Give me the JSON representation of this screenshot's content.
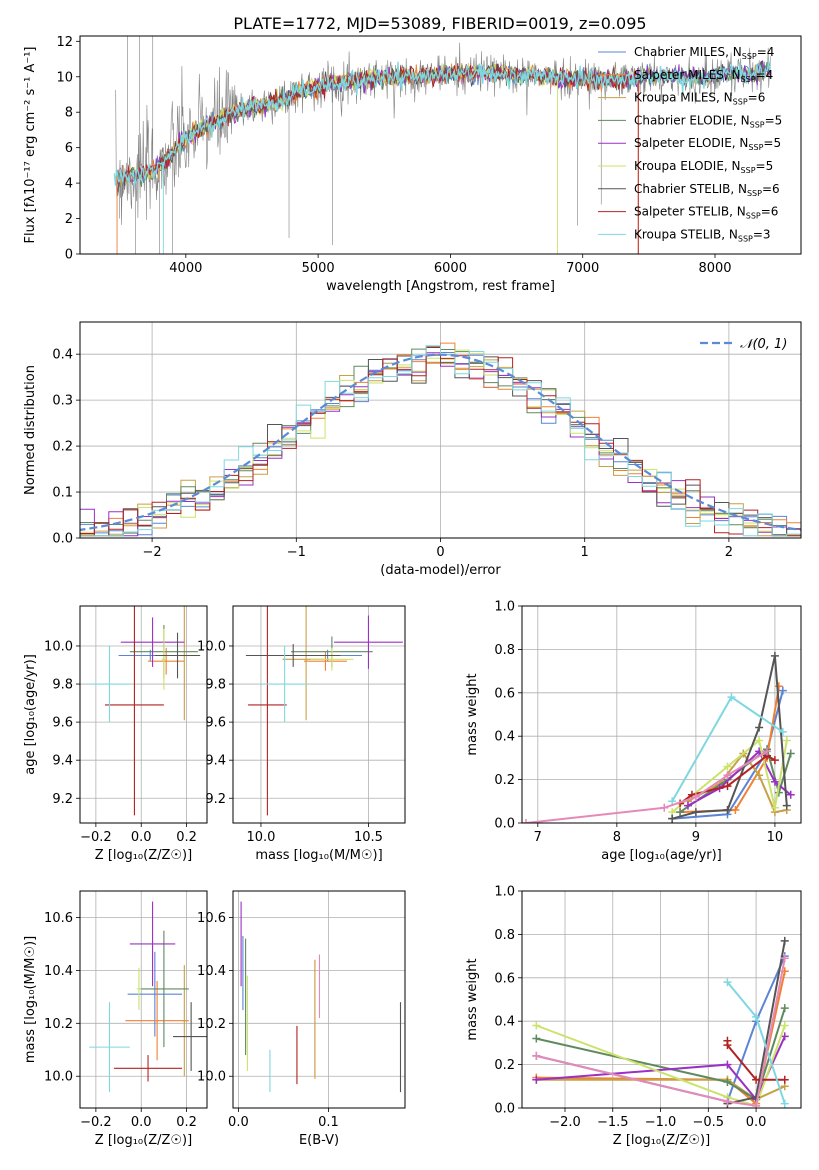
{
  "colors": {
    "ink": "#000000",
    "grid": "#b0b0b0",
    "models": [
      "#5b83d6",
      "#f28032",
      "#c8a046",
      "#5f8a5f",
      "#9b30c4",
      "#cbe36a",
      "#555555",
      "#b22222",
      "#7fd8e0"
    ],
    "extra": [
      "#e58ab8"
    ],
    "normal_curve": "#5b8ad6"
  },
  "chart_data": [
    {
      "id": "spectrum",
      "type": "line",
      "title": "PLATE=1772, MJD=53089, FIBERID=0019, z=0.095",
      "xlabel": "wavelength [Angstrom, rest frame]",
      "ylabel": "Flux [fλ10⁻¹⁷ erg cm⁻² s⁻¹ A⁻¹]",
      "xlim": [
        3200,
        8650
      ],
      "ylim": [
        0,
        12.3
      ],
      "xticks": [
        4000,
        5000,
        6000,
        7000,
        8000
      ],
      "yticks": [
        0,
        2,
        4,
        6,
        8,
        10,
        12
      ],
      "grid": false,
      "legend_position": "right",
      "legend": [
        {
          "text": "Chabrier MILES, N",
          "sub": "SSP",
          "tail": "=4"
        },
        {
          "text": "Salpeter MILES, N",
          "sub": "SSP",
          "tail": "=4"
        },
        {
          "text": "Kroupa MILES, N",
          "sub": "SSP",
          "tail": "=6"
        },
        {
          "text": "Chabrier ELODIE, N",
          "sub": "SSP",
          "tail": "=5"
        },
        {
          "text": "Salpeter ELODIE, N",
          "sub": "SSP",
          "tail": "=5"
        },
        {
          "text": "Kroupa ELODIE, N",
          "sub": "SSP",
          "tail": "=5"
        },
        {
          "text": "Chabrier STELIB, N",
          "sub": "SSP",
          "tail": "=6"
        },
        {
          "text": "Salpeter STELIB, N",
          "sub": "SSP",
          "tail": "=6"
        },
        {
          "text": "Kroupa STELIB, N",
          "sub": "SSP",
          "tail": "=3"
        }
      ],
      "continuum": {
        "x": [
          3480,
          3550,
          3650,
          3750,
          3850,
          3950,
          4050,
          4150,
          4300,
          4450,
          4600,
          4750,
          4900,
          5100,
          5300,
          5500,
          5700,
          5900,
          6100,
          6300,
          6500,
          6700,
          6900,
          7100,
          7300,
          7500,
          7700,
          7900,
          8100,
          8300,
          8400
        ],
        "y": [
          4.2,
          4.4,
          4.5,
          4.7,
          5.3,
          6.2,
          6.7,
          7.2,
          7.7,
          8.2,
          8.4,
          8.8,
          9.3,
          9.6,
          9.8,
          10.0,
          10.0,
          10.1,
          10.2,
          10.2,
          10.1,
          10.0,
          9.9,
          9.9,
          9.8,
          10.0,
          10.0,
          9.9,
          10.3,
          10.1,
          10.5
        ]
      },
      "model_start_x": [
        3480,
        3470,
        3480,
        3480,
        3480,
        3480,
        3480,
        3480,
        3460
      ],
      "model_end_x": [
        8420,
        7420,
        8420,
        8420,
        8420,
        6810,
        8420,
        7420,
        8420
      ]
    },
    {
      "id": "residuals",
      "type": "line",
      "xlabel": "(data-model)/error",
      "ylabel": "Normed distribution",
      "xlim": [
        -2.5,
        2.5
      ],
      "ylim": [
        0,
        0.47
      ],
      "xticks": [
        -2,
        -1,
        0,
        1,
        2
      ],
      "yticks": [
        0.0,
        0.1,
        0.2,
        0.3,
        0.4
      ],
      "grid": true,
      "legend": {
        "text": "𝒩(0, 1)"
      },
      "normal": {
        "mean": 0,
        "sigma": 1
      },
      "bin_width": 0.1
    },
    {
      "id": "age-vs-z",
      "type": "scatter",
      "xlabel": "Z [log₁₀(Z/Z☉)]",
      "ylabel": "age  [log₁₀(age/yr)]",
      "xlim": [
        -0.27,
        0.29
      ],
      "ylim": [
        9.07,
        10.21
      ],
      "xticks": [
        -0.2,
        0.0,
        0.2
      ],
      "yticks": [
        9.2,
        9.4,
        9.6,
        9.8,
        10.0
      ],
      "grid": true,
      "points": [
        {
          "x": 0.04,
          "y": 9.95,
          "xerr": 0.14,
          "yerr": 0.03,
          "c": 0
        },
        {
          "x": 0.11,
          "y": 9.92,
          "xerr": 0.08,
          "yerr": 0.07,
          "c": 1
        },
        {
          "x": 0.19,
          "y": 9.95,
          "xerr": 0.01,
          "yerr": 0.34,
          "c": 2
        },
        {
          "x": 0.1,
          "y": 9.97,
          "xerr": 0.15,
          "yerr": 0.14,
          "c": 3
        },
        {
          "x": 0.05,
          "y": 10.02,
          "xerr": 0.14,
          "yerr": 0.13,
          "c": 4
        },
        {
          "x": 0.1,
          "y": 9.93,
          "xerr": 0.01,
          "yerr": 0.16,
          "c": 5
        },
        {
          "x": 0.16,
          "y": 9.95,
          "xerr": 0.1,
          "yerr": 0.12,
          "c": 6
        },
        {
          "x": -0.03,
          "y": 9.69,
          "xerr": 0.13,
          "yerr": 0.58,
          "c": 7
        },
        {
          "x": -0.14,
          "y": 9.8,
          "xerr": 0.09,
          "yerr": 0.2,
          "c": 8
        }
      ]
    },
    {
      "id": "age-vs-mass",
      "type": "scatter",
      "xlabel": "mass [log₁₀(M/M☉)]",
      "ylabel": "",
      "xlim": [
        9.87,
        10.67
      ],
      "ylim": [
        9.07,
        10.21
      ],
      "xticks": [
        10.0,
        10.5
      ],
      "yticks": [
        9.2,
        9.4,
        9.6,
        9.8,
        10.0
      ],
      "grid": true,
      "points": [
        {
          "x": 10.31,
          "y": 9.95,
          "xerr": 0.16,
          "yerr": 0.03,
          "c": 0
        },
        {
          "x": 10.3,
          "y": 9.92,
          "xerr": 0.1,
          "yerr": 0.05,
          "c": 1
        },
        {
          "x": 10.21,
          "y": 9.93,
          "xerr": 0.11,
          "yerr": 0.32,
          "c": 2
        },
        {
          "x": 10.33,
          "y": 9.97,
          "xerr": 0.19,
          "yerr": 0.08,
          "c": 3
        },
        {
          "x": 10.5,
          "y": 10.02,
          "xerr": 0.16,
          "yerr": 0.14,
          "c": 4
        },
        {
          "x": 10.33,
          "y": 9.93,
          "xerr": 0.1,
          "yerr": 0.06,
          "c": 5
        },
        {
          "x": 10.15,
          "y": 9.95,
          "xerr": 0.22,
          "yerr": 0.06,
          "c": 6
        },
        {
          "x": 10.03,
          "y": 9.69,
          "xerr": 0.09,
          "yerr": 0.58,
          "c": 7
        },
        {
          "x": 10.11,
          "y": 9.8,
          "xerr": 0.11,
          "yerr": 0.2,
          "c": 8
        }
      ]
    },
    {
      "id": "mass-weight-vs-age",
      "type": "line",
      "xlabel": "age  [log₁₀(age/yr)]",
      "ylabel": "mass weight",
      "xlim": [
        6.8,
        10.33
      ],
      "ylim": [
        0,
        1.0
      ],
      "xticks": [
        7,
        8,
        9,
        10
      ],
      "yticks": [
        0.0,
        0.2,
        0.4,
        0.6,
        0.8,
        1.0
      ],
      "grid": true,
      "series": [
        {
          "c": 0,
          "x": [
            8.7,
            9.4,
            9.9,
            10.1
          ],
          "y": [
            0.02,
            0.04,
            0.33,
            0.61
          ]
        },
        {
          "c": 1,
          "x": [
            8.8,
            9.5,
            9.9,
            10.05
          ],
          "y": [
            0.05,
            0.06,
            0.3,
            0.63
          ]
        },
        {
          "c": 2,
          "x": [
            8.9,
            9.3,
            9.6,
            9.8,
            10.0,
            10.15
          ],
          "y": [
            0.1,
            0.18,
            0.32,
            0.22,
            0.05,
            0.06
          ]
        },
        {
          "c": 3,
          "x": [
            8.8,
            9.4,
            9.9,
            10.05,
            10.2
          ],
          "y": [
            0.05,
            0.2,
            0.34,
            0.14,
            0.32
          ]
        },
        {
          "c": 4,
          "x": [
            8.9,
            9.3,
            9.8,
            10.0,
            10.2
          ],
          "y": [
            0.08,
            0.16,
            0.33,
            0.19,
            0.13
          ]
        },
        {
          "c": 5,
          "x": [
            8.7,
            9.4,
            9.8,
            10.0,
            10.15
          ],
          "y": [
            0.05,
            0.26,
            0.38,
            0.07,
            0.38
          ]
        },
        {
          "c": 6,
          "x": [
            8.7,
            9.0,
            9.4,
            9.8,
            10.0,
            10.15
          ],
          "y": [
            0.02,
            0.05,
            0.06,
            0.44,
            0.77,
            0.08
          ]
        },
        {
          "c": 7,
          "x": [
            8.8,
            8.95,
            9.4,
            9.9,
            10.0
          ],
          "y": [
            0.09,
            0.13,
            0.17,
            0.31,
            0.29
          ]
        },
        {
          "c": 8,
          "x": [
            8.7,
            9.45,
            10.1
          ],
          "y": [
            0.1,
            0.58,
            0.42
          ]
        },
        {
          "c": "extra",
          "x": [
            6.85,
            8.6,
            9.0,
            9.4,
            9.9
          ],
          "y": [
            0.0,
            0.07,
            0.12,
            0.22,
            0.33
          ]
        }
      ]
    },
    {
      "id": "mass-vs-z",
      "type": "scatter",
      "xlabel": "Z [log₁₀(Z/Z☉)]",
      "ylabel": "mass [log₁₀(M/M☉)]",
      "xlim": [
        -0.27,
        0.29
      ],
      "ylim": [
        9.88,
        10.7
      ],
      "xticks": [
        -0.2,
        0.0,
        0.2
      ],
      "yticks": [
        10.0,
        10.2,
        10.4,
        10.6
      ],
      "grid": true,
      "points": [
        {
          "x": 0.06,
          "y": 10.31,
          "xerr": 0.12,
          "yerr": 0.16,
          "c": 0
        },
        {
          "x": 0.07,
          "y": 10.21,
          "xerr": 0.14,
          "yerr": 0.15,
          "c": 1
        },
        {
          "x": 0.19,
          "y": 10.21,
          "xerr": 0.01,
          "yerr": 0.21,
          "c": 2
        },
        {
          "x": 0.1,
          "y": 10.33,
          "xerr": 0.11,
          "yerr": 0.22,
          "c": 3
        },
        {
          "x": 0.05,
          "y": 10.5,
          "xerr": 0.1,
          "yerr": 0.16,
          "c": 4
        },
        {
          "x": -0.01,
          "y": 10.33,
          "xerr": 0.01,
          "yerr": 0.08,
          "c": 5
        },
        {
          "x": 0.22,
          "y": 10.15,
          "xerr": 0.08,
          "yerr": 0.13,
          "c": 6
        },
        {
          "x": 0.03,
          "y": 10.03,
          "xerr": 0.15,
          "yerr": 0.05,
          "c": 7
        },
        {
          "x": -0.14,
          "y": 10.11,
          "xerr": 0.09,
          "yerr": 0.17,
          "c": 8
        }
      ]
    },
    {
      "id": "mass-vs-ebv",
      "type": "scatter",
      "xlabel": "E(B-V)",
      "ylabel": "",
      "xlim": [
        -0.006,
        0.185
      ],
      "ylim": [
        9.88,
        10.7
      ],
      "xticks": [
        0.0,
        0.1
      ],
      "yticks": [
        10.0,
        10.2,
        10.4,
        10.6
      ],
      "grid": true,
      "points": [
        {
          "x": 0.005,
          "y": 10.39,
          "xerr": 0.0,
          "yerr": 0.14,
          "c": 0
        },
        {
          "x": 0.085,
          "y": 10.22,
          "xerr": 0.0,
          "yerr": 0.22,
          "c": 1
        },
        {
          "x": 0.085,
          "y": 10.21,
          "xerr": 0.0,
          "yerr": 0.22,
          "c": 2
        },
        {
          "x": 0.008,
          "y": 10.3,
          "xerr": 0.0,
          "yerr": 0.22,
          "c": 3
        },
        {
          "x": 0.003,
          "y": 10.5,
          "xerr": 0.0,
          "yerr": 0.16,
          "c": 4
        },
        {
          "x": 0.01,
          "y": 10.2,
          "xerr": 0.0,
          "yerr": 0.18,
          "c": 5
        },
        {
          "x": 0.18,
          "y": 10.11,
          "xerr": 0.0,
          "yerr": 0.17,
          "c": 6
        },
        {
          "x": 0.065,
          "y": 10.08,
          "xerr": 0.0,
          "yerr": 0.11,
          "c": 7
        },
        {
          "x": 0.035,
          "y": 10.02,
          "xerr": 0.0,
          "yerr": 0.08,
          "c": 8
        },
        {
          "x": 0.09,
          "y": 10.34,
          "xerr": 0.0,
          "yerr": 0.12,
          "c": "extra"
        }
      ]
    },
    {
      "id": "mass-weight-vs-z",
      "type": "line",
      "xlabel": "Z [log₁₀(Z/Z☉)]",
      "ylabel": "mass weight",
      "xlim": [
        -2.45,
        0.47
      ],
      "ylim": [
        0,
        1.0
      ],
      "xticks": [
        -2.0,
        -1.5,
        -1.0,
        -0.5,
        0.0
      ],
      "yticks": [
        0.0,
        0.2,
        0.4,
        0.6,
        0.8,
        1.0
      ],
      "grid": true,
      "series": [
        {
          "c": 0,
          "x": [
            -2.3,
            -0.3,
            0.0,
            0.3
          ],
          "y": [
            0.24,
            0.03,
            0.4,
            0.7
          ]
        },
        {
          "c": 1,
          "x": [
            -2.3,
            -0.3,
            0.0,
            0.3
          ],
          "y": [
            0.14,
            0.13,
            0.02,
            0.63
          ]
        },
        {
          "c": 2,
          "x": [
            -2.3,
            -0.3,
            0.0,
            0.3
          ],
          "y": [
            0.13,
            0.13,
            0.04,
            0.1
          ]
        },
        {
          "c": 3,
          "x": [
            -2.3,
            -0.3,
            0.0,
            0.3
          ],
          "y": [
            0.32,
            0.12,
            0.04,
            0.46
          ]
        },
        {
          "c": 4,
          "x": [
            -2.3,
            -0.3,
            0.0,
            0.3
          ],
          "y": [
            0.13,
            0.2,
            0.04,
            0.33
          ]
        },
        {
          "c": 5,
          "x": [
            -2.3,
            -0.3,
            0.0,
            0.3
          ],
          "y": [
            0.38,
            0.05,
            0.01,
            0.38
          ]
        },
        {
          "c": 6,
          "x": [
            -0.3,
            0.0,
            0.3
          ],
          "y": [
            0.02,
            0.05,
            0.77
          ]
        },
        {
          "c": 7,
          "x": [
            -0.3,
            -0.3,
            0.0,
            0.3
          ],
          "y": [
            0.31,
            0.29,
            0.13,
            0.13
          ]
        },
        {
          "c": 8,
          "x": [
            -0.3,
            0.0,
            0.3
          ],
          "y": [
            0.58,
            0.42,
            0.02
          ]
        },
        {
          "c": "extra",
          "x": [
            -2.3,
            -0.3,
            0.0,
            0.3
          ],
          "y": [
            0.24,
            0.03,
            0.01,
            0.69
          ]
        }
      ]
    }
  ]
}
